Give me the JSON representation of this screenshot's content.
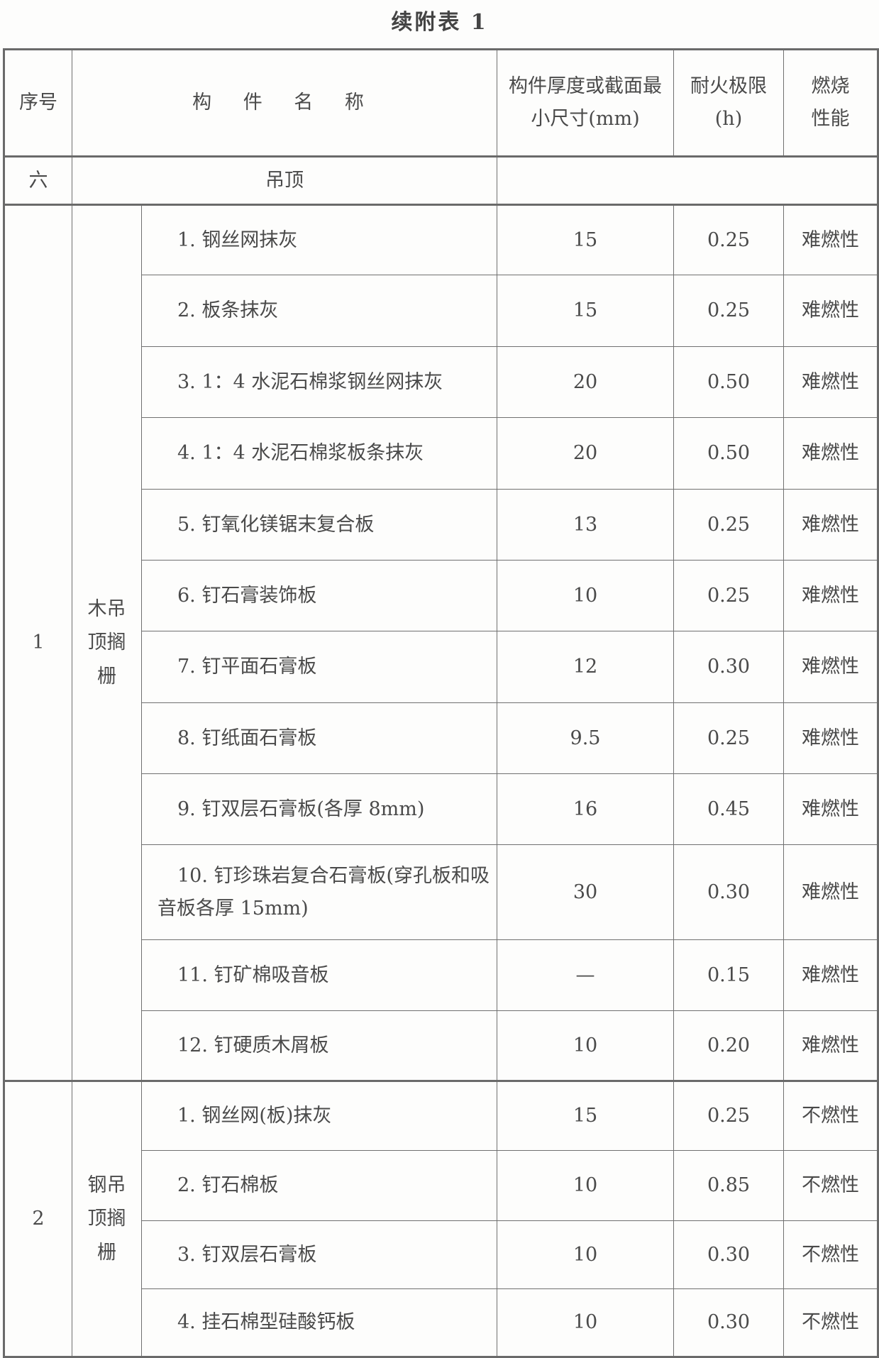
{
  "title": "续附表 1",
  "headers": {
    "no": "序号",
    "name": "构 件 名 称",
    "thickness": "构件厚度或截面最小尺寸(mm)",
    "fire_limit": "耐火极限(h)",
    "combustion": "燃烧性能"
  },
  "section": {
    "no": "六",
    "name": "吊顶"
  },
  "groups": [
    {
      "no": "1",
      "name": "木吊顶搁栅",
      "rows": [
        {
          "name": "1. 钢丝网抹灰",
          "thickness": "15",
          "fire_limit": "0.25",
          "combustion": "难燃性"
        },
        {
          "name": "2. 板条抹灰",
          "thickness": "15",
          "fire_limit": "0.25",
          "combustion": "难燃性"
        },
        {
          "name": "3. 1：4 水泥石棉浆钢丝网抹灰",
          "thickness": "20",
          "fire_limit": "0.50",
          "combustion": "难燃性"
        },
        {
          "name": "4. 1：4 水泥石棉浆板条抹灰",
          "thickness": "20",
          "fire_limit": "0.50",
          "combustion": "难燃性"
        },
        {
          "name": "5. 钉氧化镁锯末复合板",
          "thickness": "13",
          "fire_limit": "0.25",
          "combustion": "难燃性"
        },
        {
          "name": "6. 钉石膏装饰板",
          "thickness": "10",
          "fire_limit": "0.25",
          "combustion": "难燃性"
        },
        {
          "name": "7. 钉平面石膏板",
          "thickness": "12",
          "fire_limit": "0.30",
          "combustion": "难燃性"
        },
        {
          "name": "8. 钉纸面石膏板",
          "thickness": "9.5",
          "fire_limit": "0.25",
          "combustion": "难燃性"
        },
        {
          "name": "9. 钉双层石膏板(各厚 8mm)",
          "thickness": "16",
          "fire_limit": "0.45",
          "combustion": "难燃性"
        },
        {
          "name": "10. 钉珍珠岩复合石膏板(穿孔板和吸音板各厚 15mm)",
          "thickness": "30",
          "fire_limit": "0.30",
          "combustion": "难燃性"
        },
        {
          "name": "11. 钉矿棉吸音板",
          "thickness": "—",
          "fire_limit": "0.15",
          "combustion": "难燃性"
        },
        {
          "name": "12. 钉硬质木屑板",
          "thickness": "10",
          "fire_limit": "0.20",
          "combustion": "难燃性"
        }
      ]
    },
    {
      "no": "2",
      "name": "钢吊顶搁栅",
      "rows": [
        {
          "name": "1. 钢丝网(板)抹灰",
          "thickness": "15",
          "fire_limit": "0.25",
          "combustion": "不燃性"
        },
        {
          "name": "2. 钉石棉板",
          "thickness": "10",
          "fire_limit": "0.85",
          "combustion": "不燃性"
        },
        {
          "name": "3. 钉双层石膏板",
          "thickness": "10",
          "fire_limit": "0.30",
          "combustion": "不燃性"
        },
        {
          "name": "4. 挂石棉型硅酸钙板",
          "thickness": "10",
          "fire_limit": "0.30",
          "combustion": "不燃性"
        }
      ]
    }
  ]
}
